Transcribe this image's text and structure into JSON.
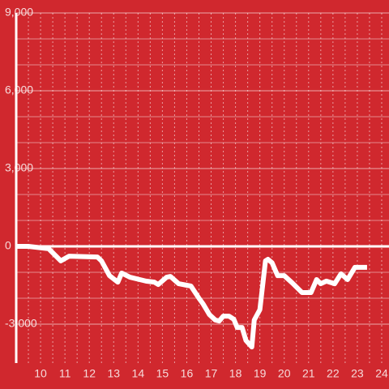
{
  "chart_data": {
    "type": "line",
    "x": [
      9.0,
      9.5,
      10.33,
      10.83,
      11.17,
      12.33,
      12.5,
      12.83,
      13.17,
      13.33,
      13.67,
      14.33,
      14.67,
      14.83,
      15.17,
      15.33,
      15.67,
      16.0,
      16.17,
      16.5,
      16.67,
      16.93,
      17.17,
      17.33,
      17.5,
      17.73,
      17.93,
      18.07,
      18.27,
      18.43,
      18.67,
      18.77,
      19.0,
      19.23,
      19.33,
      19.5,
      19.73,
      20.0,
      20.33,
      20.73,
      21.1,
      21.33,
      21.5,
      21.73,
      22.07,
      22.33,
      22.6,
      22.9,
      23.4
    ],
    "values": [
      0,
      0,
      -90,
      -560,
      -380,
      -410,
      -560,
      -1130,
      -1380,
      -1030,
      -1190,
      -1340,
      -1380,
      -1470,
      -1190,
      -1160,
      -1440,
      -1500,
      -1530,
      -2000,
      -2220,
      -2630,
      -2840,
      -2880,
      -2690,
      -2690,
      -2810,
      -3130,
      -3130,
      -3630,
      -3880,
      -2840,
      -2440,
      -560,
      -500,
      -630,
      -1130,
      -1130,
      -1410,
      -1780,
      -1780,
      -1280,
      -1440,
      -1340,
      -1440,
      -1060,
      -1280,
      -810,
      -810
    ],
    "color": "#ffffff",
    "xlim": [
      9,
      24.3
    ],
    "xticks": [
      10,
      11,
      12,
      13,
      14,
      15,
      16,
      17,
      18,
      19,
      20,
      21,
      22,
      23,
      24
    ],
    "ylim": [
      -4500,
      9000
    ],
    "yticks": [
      {
        "value": -3000,
        "label": "-3,000"
      },
      0,
      {
        "value": 3000,
        "label": "3,000"
      },
      {
        "value": 6000,
        "label": "6,000"
      },
      {
        "value": 9000,
        "label": "9,000"
      }
    ],
    "grid": true
  }
}
